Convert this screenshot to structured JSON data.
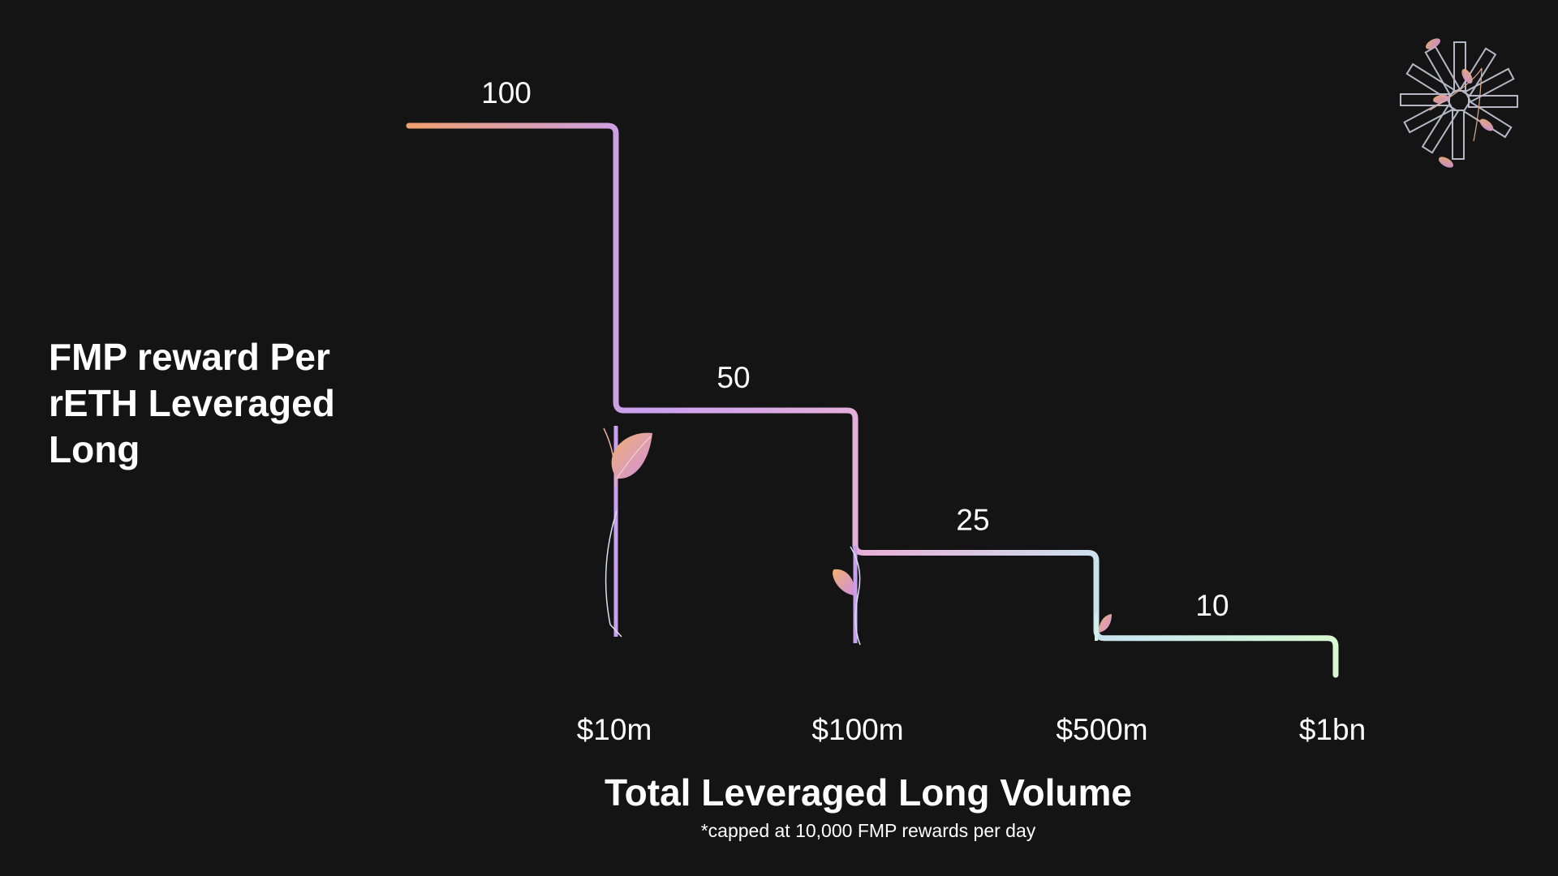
{
  "chart_data": {
    "type": "line",
    "step": true,
    "title": "",
    "ylabel": "FMP reward Per\nrETH Leveraged\nLong",
    "xlabel": "Total Leveraged Long Volume",
    "footnote": "*capped at 10,000 FMP rewards per day",
    "x_ticks": [
      "$10m",
      "$100m",
      "$500m",
      "$1bn"
    ],
    "tiers": [
      {
        "range": "$0 – $10m",
        "value": 100,
        "label": "100"
      },
      {
        "range": "$10m – $100m",
        "value": 50,
        "label": "50"
      },
      {
        "range": "$100m – $500m",
        "value": 25,
        "label": "25"
      },
      {
        "range": "$500m – $1bn",
        "value": 10,
        "label": "10"
      }
    ],
    "grid": false,
    "legend": "none",
    "colors": {
      "background": "#141414",
      "gradient_start": "#f0a070",
      "gradient_mid": "#c9a0f0",
      "gradient_end": "#d8f8d0",
      "text": "#ffffff"
    }
  },
  "icons": {
    "logo": "flower-burst-logo-icon",
    "sprouts": [
      "sprout-large-icon",
      "sprout-medium-icon",
      "sprout-small-icon"
    ]
  }
}
